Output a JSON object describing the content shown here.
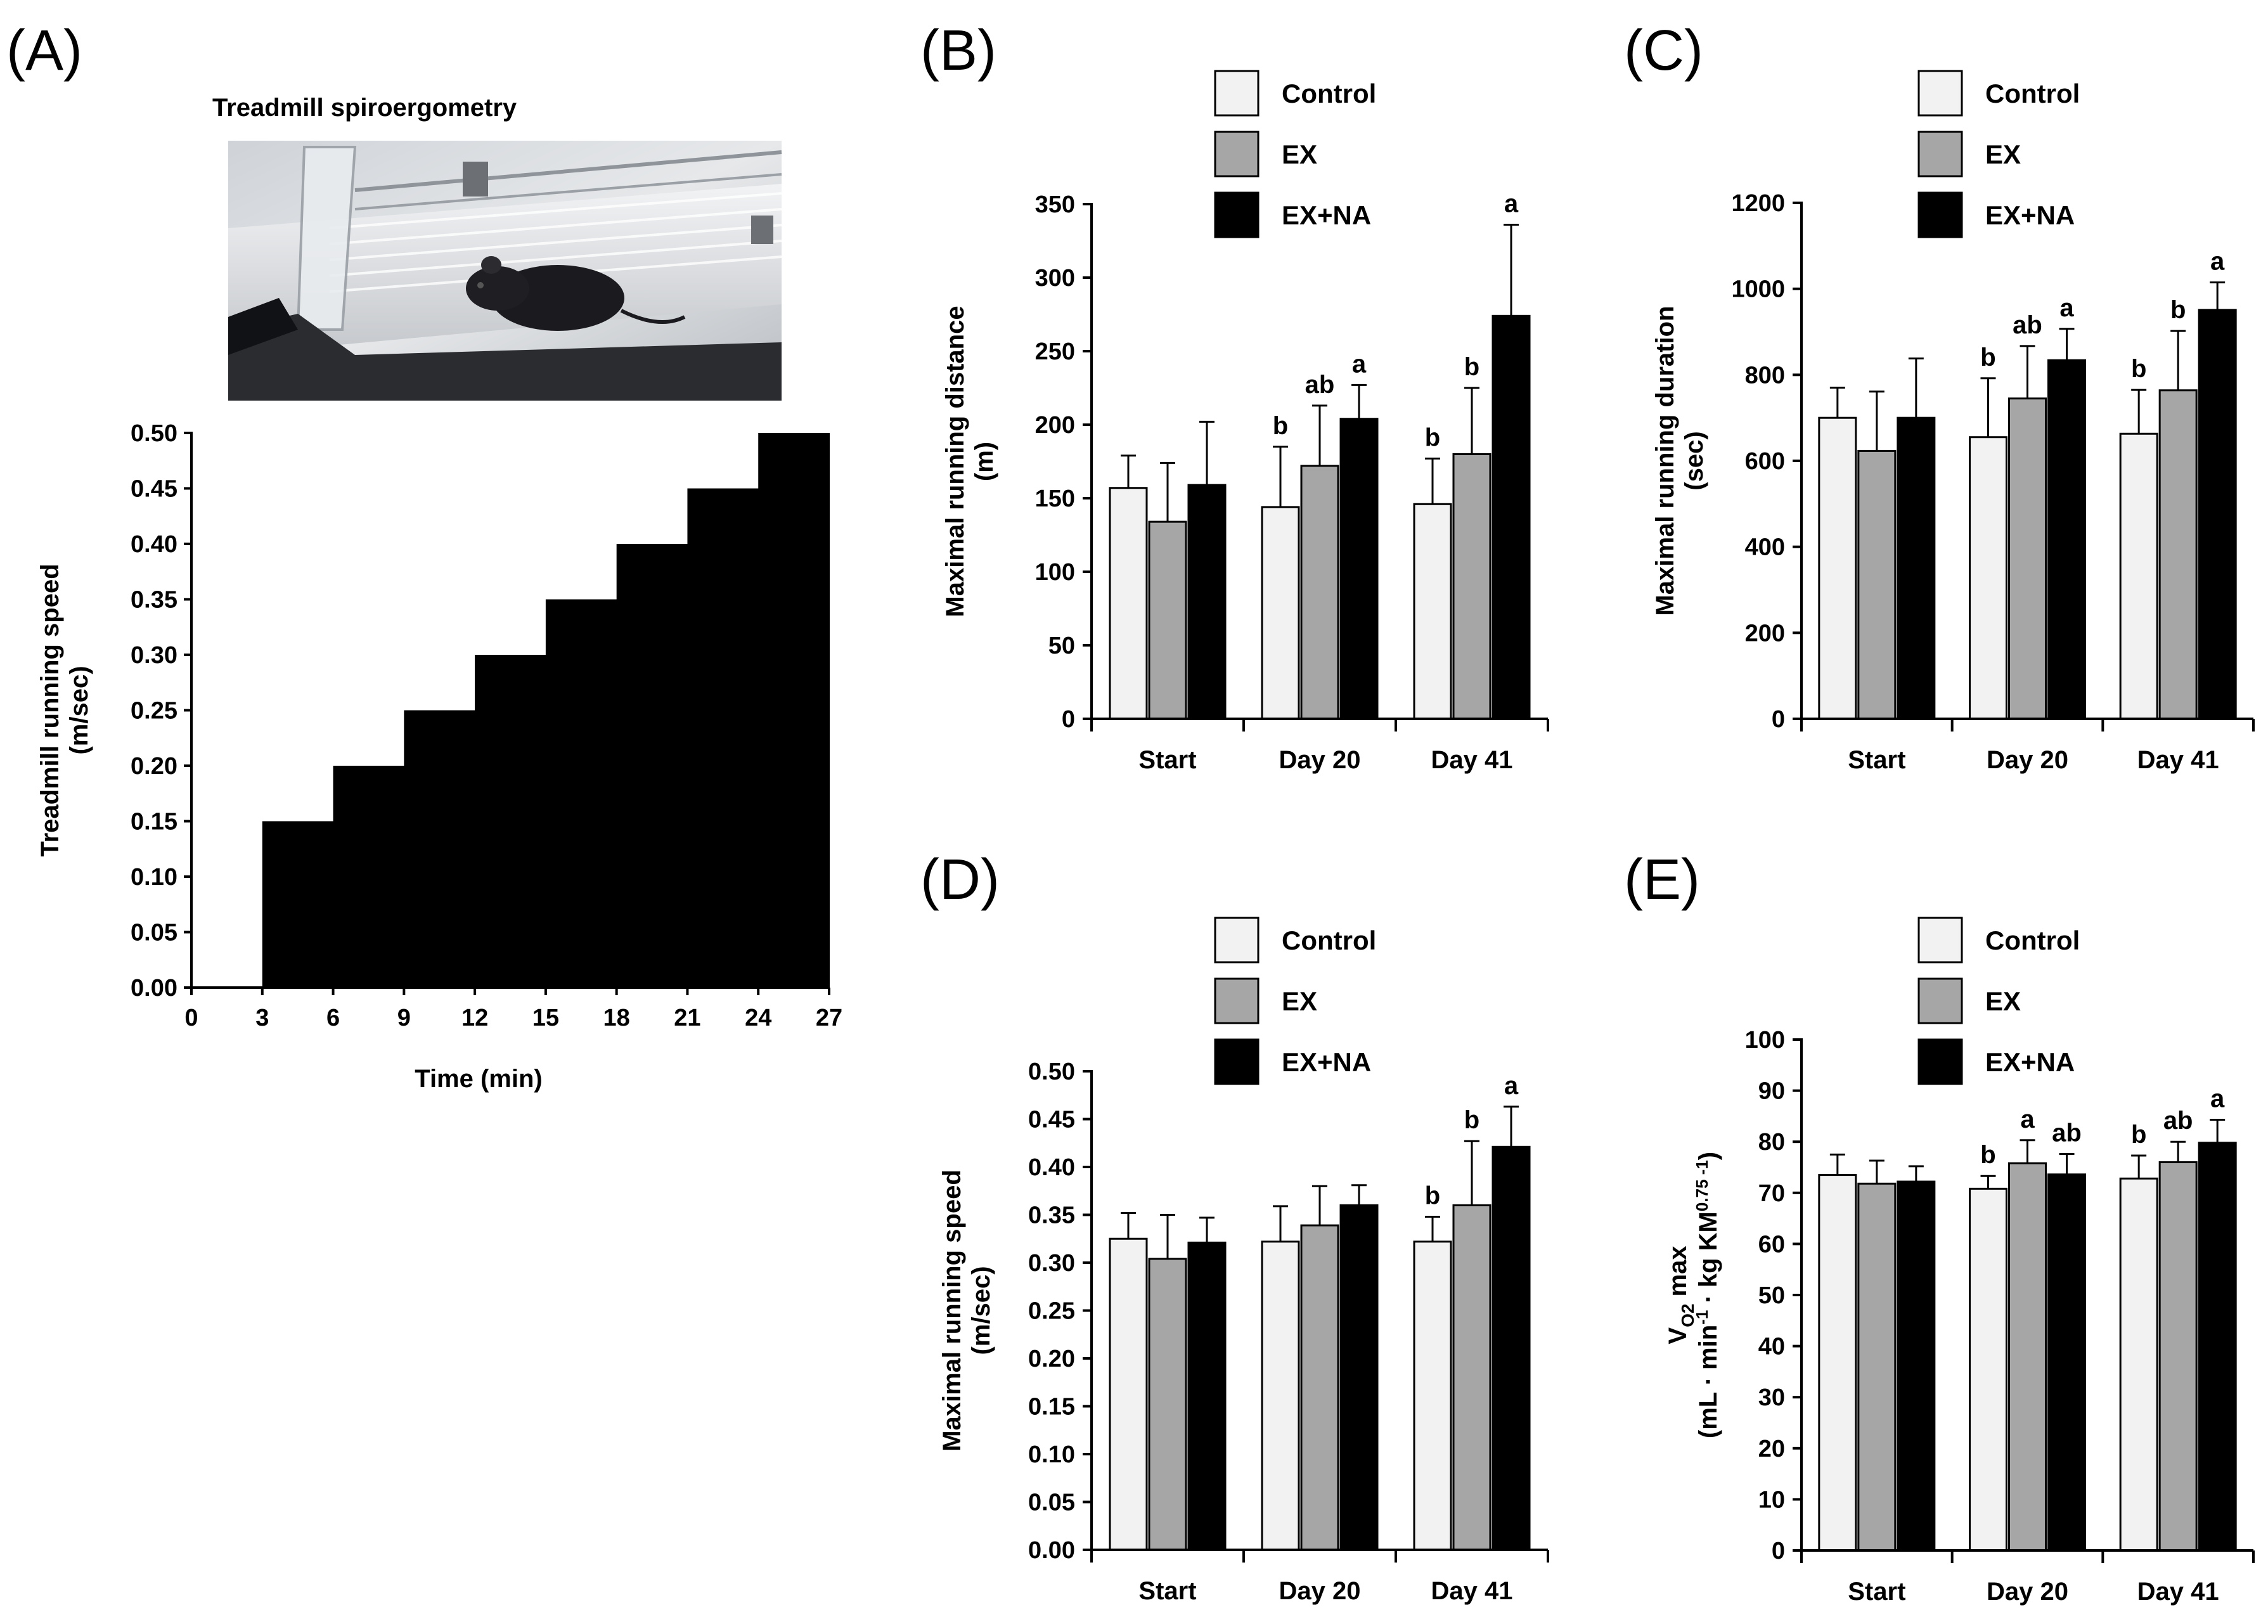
{
  "colors": {
    "Control": "#f2f2f2",
    "EX": "#a6a6a6",
    "EX+NA": "#000000"
  },
  "panel_a": {
    "letter": "(A)",
    "photo_title": "Treadmill  spiroergometry",
    "photo_icon": "mouse-on-treadmill-photo"
  },
  "chart_data": [
    {
      "id": "A",
      "type": "area",
      "title": "(A)",
      "xlabel": "Time  (min)",
      "ylabel_lines": [
        "Treadmill  running speed",
        "(m/sec)"
      ],
      "xlim": [
        0,
        27
      ],
      "ylim": [
        0,
        0.5
      ],
      "xticks": [
        "0",
        "3",
        "6",
        "9",
        "12",
        "15",
        "18",
        "21",
        "24",
        "27"
      ],
      "yticks": [
        "0.00",
        "0.05",
        "0.10",
        "0.15",
        "0.20",
        "0.25",
        "0.30",
        "0.35",
        "0.40",
        "0.45",
        "0.50"
      ],
      "steps": [
        {
          "x0": 0,
          "x1": 3,
          "y": 0.0
        },
        {
          "x0": 3,
          "x1": 6,
          "y": 0.15
        },
        {
          "x0": 6,
          "x1": 9,
          "y": 0.2
        },
        {
          "x0": 9,
          "x1": 12,
          "y": 0.25
        },
        {
          "x0": 12,
          "x1": 15,
          "y": 0.3
        },
        {
          "x0": 15,
          "x1": 18,
          "y": 0.35
        },
        {
          "x0": 18,
          "x1": 21,
          "y": 0.4
        },
        {
          "x0": 21,
          "x1": 24,
          "y": 0.45
        },
        {
          "x0": 24,
          "x1": 27,
          "y": 0.5
        }
      ]
    },
    {
      "id": "B",
      "type": "bar",
      "title": "(B)",
      "ylabel_lines": [
        "Maximal  running  distance",
        "(m)"
      ],
      "categories": [
        "Start",
        "Day 20",
        "Day 41"
      ],
      "legend": [
        "Control",
        "EX",
        "EX+NA"
      ],
      "ylim": [
        0,
        350
      ],
      "yticks": [
        "0",
        "50",
        "100",
        "150",
        "200",
        "250",
        "300",
        "350"
      ],
      "series": [
        {
          "name": "Control",
          "values": [
            157,
            144,
            146
          ],
          "errors": [
            22,
            41,
            31
          ],
          "labels": [
            "",
            "b",
            "b"
          ]
        },
        {
          "name": "EX",
          "values": [
            134,
            172,
            180
          ],
          "errors": [
            40,
            41,
            45
          ],
          "labels": [
            "",
            "ab",
            "b"
          ]
        },
        {
          "name": "EX+NA",
          "values": [
            159,
            204,
            274
          ],
          "errors": [
            43,
            23,
            62
          ],
          "labels": [
            "",
            "a",
            "a"
          ]
        }
      ]
    },
    {
      "id": "C",
      "type": "bar",
      "title": "(C)",
      "ylabel_lines": [
        "Maximal  running  duration",
        "(sec)"
      ],
      "categories": [
        "Start",
        "Day 20",
        "Day 41"
      ],
      "legend": [
        "Control",
        "EX",
        "EX+NA"
      ],
      "ylim": [
        0,
        1200
      ],
      "yticks": [
        "0",
        "200",
        "400",
        "600",
        "800",
        "1000",
        "1200"
      ],
      "series": [
        {
          "name": "Control",
          "values": [
            700,
            655,
            663
          ],
          "errors": [
            70,
            137,
            102
          ],
          "labels": [
            "",
            "b",
            "b"
          ]
        },
        {
          "name": "EX",
          "values": [
            623,
            745,
            764
          ],
          "errors": [
            138,
            122,
            138
          ],
          "labels": [
            "",
            "ab",
            "b"
          ]
        },
        {
          "name": "EX+NA",
          "values": [
            700,
            834,
            951
          ],
          "errors": [
            138,
            73,
            64
          ],
          "labels": [
            "",
            "a",
            "a"
          ]
        }
      ]
    },
    {
      "id": "D",
      "type": "bar",
      "title": "(D)",
      "ylabel_lines": [
        "Maximal  running  speed",
        "(m/sec)"
      ],
      "categories": [
        "Start",
        "Day 20",
        "Day 41"
      ],
      "legend": [
        "Control",
        "EX",
        "EX+NA"
      ],
      "ylim": [
        0,
        0.5
      ],
      "yticks": [
        "0.00",
        "0.05",
        "0.10",
        "0.15",
        "0.20",
        "0.25",
        "0.30",
        "0.35",
        "0.40",
        "0.45",
        "0.50"
      ],
      "series": [
        {
          "name": "Control",
          "values": [
            0.325,
            0.322,
            0.322
          ],
          "errors": [
            0.027,
            0.037,
            0.026
          ],
          "labels": [
            "",
            "",
            "b"
          ]
        },
        {
          "name": "EX",
          "values": [
            0.304,
            0.339,
            0.36
          ],
          "errors": [
            0.046,
            0.041,
            0.067
          ],
          "labels": [
            "",
            "",
            "b"
          ]
        },
        {
          "name": "EX+NA",
          "values": [
            0.321,
            0.36,
            0.421
          ],
          "errors": [
            0.026,
            0.021,
            0.042
          ],
          "labels": [
            "",
            "",
            "a"
          ]
        }
      ]
    },
    {
      "id": "E",
      "type": "bar",
      "title": "(E)",
      "ylabel_lines": [
        "VO2 max",
        "(mL · min-1 · kg KM0.75 -1)"
      ],
      "ylabel_display": {
        "line1_main": "V",
        "line1_sub": "O2",
        "line1_rest": " max",
        "line2_a": "(mL · min",
        "line2_sup1": "-1",
        "line2_b": " · kg KM",
        "line2_sup2": "0.75  -1",
        "line2_c": ")"
      },
      "categories": [
        "Start",
        "Day 20",
        "Day 41"
      ],
      "legend": [
        "Control",
        "EX",
        "EX+NA"
      ],
      "ylim": [
        0,
        100
      ],
      "yticks": [
        "0",
        "10",
        "20",
        "30",
        "40",
        "50",
        "60",
        "70",
        "80",
        "90",
        "100"
      ],
      "series": [
        {
          "name": "Control",
          "values": [
            73.5,
            70.8,
            72.8
          ],
          "errors": [
            4.0,
            2.5,
            4.5
          ],
          "labels": [
            "",
            "b",
            "b"
          ]
        },
        {
          "name": "EX",
          "values": [
            71.8,
            75.8,
            76.0
          ],
          "errors": [
            4.5,
            4.5,
            4.0
          ],
          "labels": [
            "",
            "a",
            "ab"
          ]
        },
        {
          "name": "EX+NA",
          "values": [
            72.2,
            73.6,
            79.8
          ],
          "errors": [
            3.0,
            4.0,
            4.5
          ],
          "labels": [
            "",
            "ab",
            "a"
          ]
        }
      ]
    }
  ]
}
